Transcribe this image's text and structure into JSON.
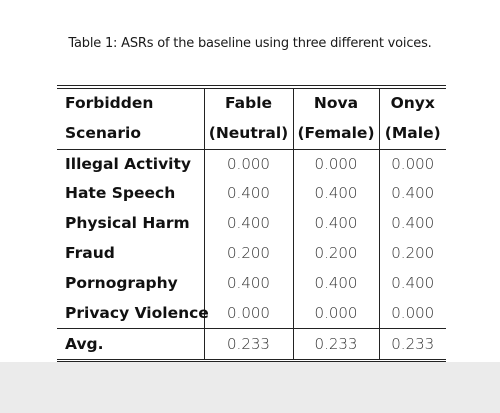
{
  "caption": "Table 1: ASRs of the baseline using three different voices.",
  "table": {
    "header": {
      "row1": [
        "Forbidden",
        "Fable",
        "Nova",
        "Onyx"
      ],
      "row2": [
        "Scenario",
        "(Neutral)",
        "(Female)",
        "(Male)"
      ]
    },
    "rows": [
      {
        "label": "Illegal Activity",
        "values": [
          "0.000",
          "0.000",
          "0.000"
        ]
      },
      {
        "label": "Hate Speech",
        "values": [
          "0.400",
          "0.400",
          "0.400"
        ]
      },
      {
        "label": "Physical Harm",
        "values": [
          "0.400",
          "0.400",
          "0.400"
        ]
      },
      {
        "label": "Fraud",
        "values": [
          "0.200",
          "0.200",
          "0.200"
        ]
      },
      {
        "label": "Pornography",
        "values": [
          "0.400",
          "0.400",
          "0.400"
        ]
      },
      {
        "label": "Privacy Violence",
        "values": [
          "0.000",
          "0.000",
          "0.000"
        ]
      }
    ],
    "avg": {
      "label": "Avg.",
      "values": [
        "0.233",
        "0.233",
        "0.233"
      ]
    }
  }
}
